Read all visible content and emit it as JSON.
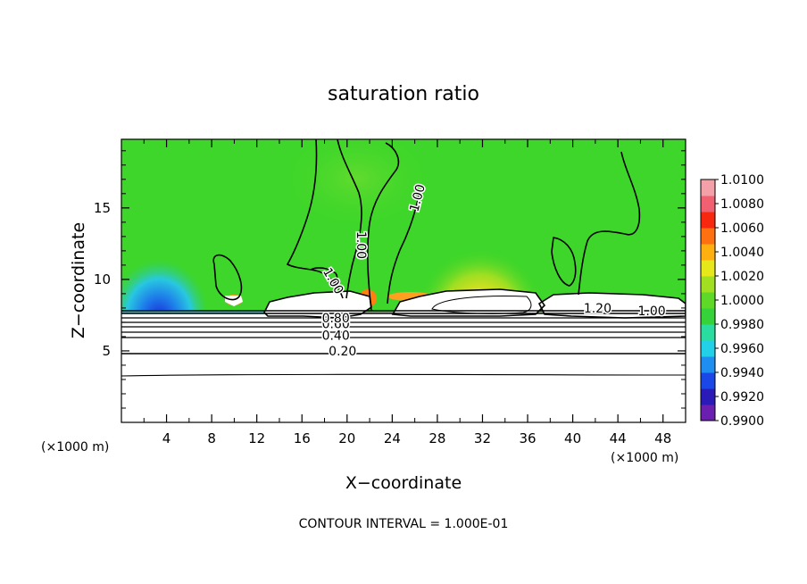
{
  "chart_data": {
    "type": "heatmap",
    "title": "saturation ratio",
    "xlabel": "X−coordinate",
    "ylabel": "Z−coordinate",
    "x_unit_left": "(×1000 m)",
    "x_unit_right": "(×1000 m)",
    "xlim": [
      0,
      50
    ],
    "ylim": [
      0,
      19.8
    ],
    "x_ticks": [
      4,
      8,
      12,
      16,
      20,
      24,
      28,
      32,
      36,
      40,
      44,
      48
    ],
    "y_ticks": [
      5,
      10,
      15
    ],
    "colorbar": {
      "min": 0.99,
      "max": 1.01,
      "labels": [
        "1.0100",
        "1.0080",
        "1.0060",
        "1.0040",
        "1.0020",
        "1.0000",
        "0.9980",
        "0.9960",
        "0.9940",
        "0.9920",
        "0.9900"
      ],
      "colors": [
        "#6a1fb0",
        "#2a1ab8",
        "#1a48e8",
        "#1e8ff0",
        "#22d0e8",
        "#2adca0",
        "#36d23a",
        "#5ed928",
        "#a0e020",
        "#e6e81a",
        "#ffb010",
        "#ff7010",
        "#f82810",
        "#f06070",
        "#f4a0a8"
      ]
    },
    "contour_interval": "CONTOUR INTERVAL = 1.000E-01",
    "contour_labels": [
      {
        "text": "0.20",
        "x": 19.6,
        "z": 5.0
      },
      {
        "text": "0.40",
        "x": 19.0,
        "z": 6.1
      },
      {
        "text": "0.60",
        "x": 19.0,
        "z": 6.9
      },
      {
        "text": "0.80",
        "x": 19.0,
        "z": 7.3
      },
      {
        "text": "1.00",
        "x": 18.8,
        "z": 9.9
      },
      {
        "text": "1.00",
        "x": 21.3,
        "z": 12.4
      },
      {
        "text": "1.00",
        "x": 26.2,
        "z": 15.7
      },
      {
        "text": "1.20",
        "x": 42.2,
        "z": 8.0
      },
      {
        "text": "1.00",
        "x": 47.0,
        "z": 7.8
      }
    ]
  }
}
